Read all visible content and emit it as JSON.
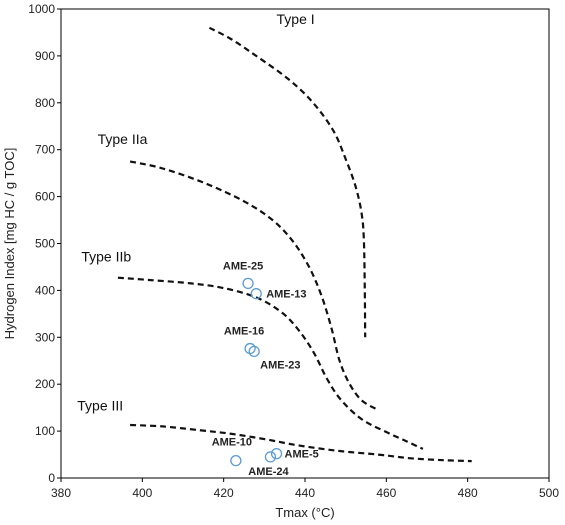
{
  "chart_data": {
    "type": "scatter",
    "title": "",
    "xlabel": "Tmax (°C)",
    "ylabel": "Hydrogen Index [mg HC / g TOC]",
    "xlim": [
      380,
      500
    ],
    "ylim": [
      0,
      1000
    ],
    "x_ticks": [
      380,
      400,
      420,
      440,
      460,
      480,
      500
    ],
    "y_ticks": [
      0,
      100,
      200,
      300,
      400,
      500,
      600,
      700,
      800,
      900,
      1000
    ],
    "grid": false,
    "point_color": "#5b9bd5",
    "curve_color": "#111111",
    "curves": [
      {
        "name": "Type I",
        "label_at": [
          433,
          968
        ],
        "points": [
          [
            416.5,
            960
          ],
          [
            422,
            935
          ],
          [
            428,
            900
          ],
          [
            436,
            850
          ],
          [
            442,
            800
          ],
          [
            447,
            740
          ],
          [
            450,
            680
          ],
          [
            452.5,
            620
          ],
          [
            454,
            560
          ],
          [
            454.5,
            500
          ],
          [
            454.7,
            400
          ],
          [
            454.8,
            300
          ]
        ]
      },
      {
        "name": "Type IIa",
        "label_at": [
          389,
          712
        ],
        "points": [
          [
            397,
            675
          ],
          [
            405,
            660
          ],
          [
            415,
            630
          ],
          [
            425,
            590
          ],
          [
            432,
            550
          ],
          [
            437,
            505
          ],
          [
            441,
            450
          ],
          [
            444,
            390
          ],
          [
            446.5,
            320
          ],
          [
            448.5,
            250
          ],
          [
            451,
            200
          ],
          [
            454,
            165
          ],
          [
            458,
            145
          ]
        ]
      },
      {
        "name": "Type IIb",
        "label_at": [
          385,
          462
        ],
        "points": [
          [
            394,
            427
          ],
          [
            402,
            422
          ],
          [
            412,
            415
          ],
          [
            420,
            405
          ],
          [
            428,
            385
          ],
          [
            434,
            355
          ],
          [
            438,
            320
          ],
          [
            442,
            270
          ],
          [
            445.5,
            210
          ],
          [
            449,
            165
          ],
          [
            454,
            125
          ],
          [
            460,
            98
          ],
          [
            465,
            78
          ],
          [
            469,
            62
          ]
        ]
      },
      {
        "name": "Type III",
        "label_at": [
          384,
          144
        ],
        "points": [
          [
            397,
            113
          ],
          [
            405,
            110
          ],
          [
            414,
            102
          ],
          [
            422,
            94
          ],
          [
            430,
            83
          ],
          [
            438,
            70
          ],
          [
            448,
            58
          ],
          [
            458,
            50
          ],
          [
            466,
            42
          ],
          [
            474,
            38
          ],
          [
            481,
            36
          ]
        ]
      }
    ],
    "samples": [
      {
        "name": "AME-25",
        "x": 426,
        "y": 415,
        "label_dx": -5,
        "label_dy": -14,
        "anchor": "middle"
      },
      {
        "name": "AME-13",
        "x": 428,
        "y": 393,
        "label_dx": 10,
        "label_dy": 4,
        "anchor": "start"
      },
      {
        "name": "AME-16",
        "x": 426.5,
        "y": 276,
        "label_dx": -6,
        "label_dy": -14,
        "anchor": "middle"
      },
      {
        "name": "AME-23",
        "x": 427.5,
        "y": 270,
        "label_dx": 6,
        "label_dy": 17,
        "anchor": "start"
      },
      {
        "name": "AME-10",
        "x": 423,
        "y": 37,
        "label_dx": -4,
        "label_dy": -15,
        "anchor": "middle"
      },
      {
        "name": "AME-5",
        "x": 433,
        "y": 52,
        "label_dx": 8,
        "label_dy": 4,
        "anchor": "start"
      },
      {
        "name": "AME-24",
        "x": 431.5,
        "y": 45,
        "label_dx": -2,
        "label_dy": 18,
        "anchor": "middle"
      }
    ]
  }
}
